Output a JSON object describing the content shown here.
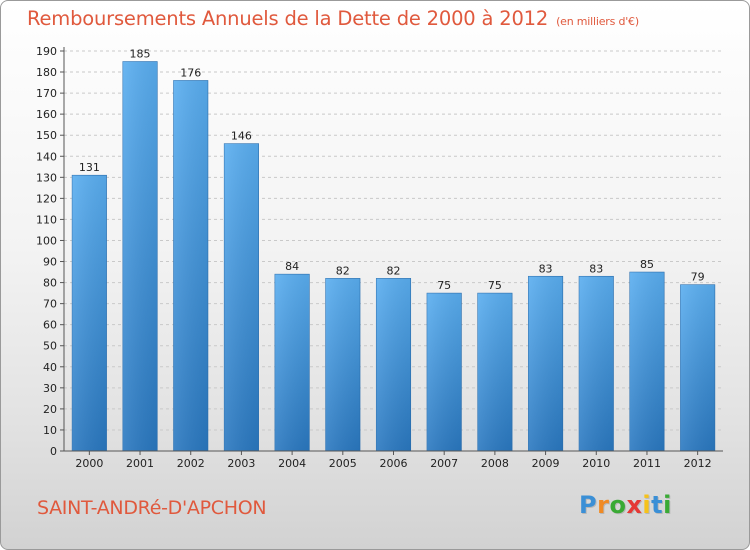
{
  "header": {
    "title": "Remboursements Annuels de la Dette de 2000 à 2012",
    "subtitle": "(en milliers d'€)"
  },
  "footer": {
    "commune": "SAINT-ANDRé-D'APCHON",
    "logo_letters": [
      {
        "ch": "P",
        "color": "#3a8fd6"
      },
      {
        "ch": "r",
        "color": "#f08a24"
      },
      {
        "ch": "o",
        "color": "#3aaa35"
      },
      {
        "ch": "x",
        "color": "#e53935"
      },
      {
        "ch": "i",
        "color": "#f6c21a"
      },
      {
        "ch": "t",
        "color": "#3a8fd6"
      },
      {
        "ch": "i",
        "color": "#3aaa35"
      }
    ]
  },
  "chart_data": {
    "type": "bar",
    "categories": [
      "2000",
      "2001",
      "2002",
      "2003",
      "2004",
      "2005",
      "2006",
      "2007",
      "2008",
      "2009",
      "2010",
      "2011",
      "2012"
    ],
    "values": [
      131,
      185,
      176,
      146,
      84,
      82,
      82,
      75,
      75,
      83,
      83,
      85,
      79
    ],
    "ylim": [
      0,
      190
    ],
    "yticks": [
      0,
      10,
      20,
      30,
      40,
      50,
      60,
      70,
      80,
      90,
      100,
      110,
      120,
      130,
      140,
      150,
      160,
      170,
      180,
      190
    ],
    "grid": true,
    "bar_color": "#3d8fd6"
  }
}
